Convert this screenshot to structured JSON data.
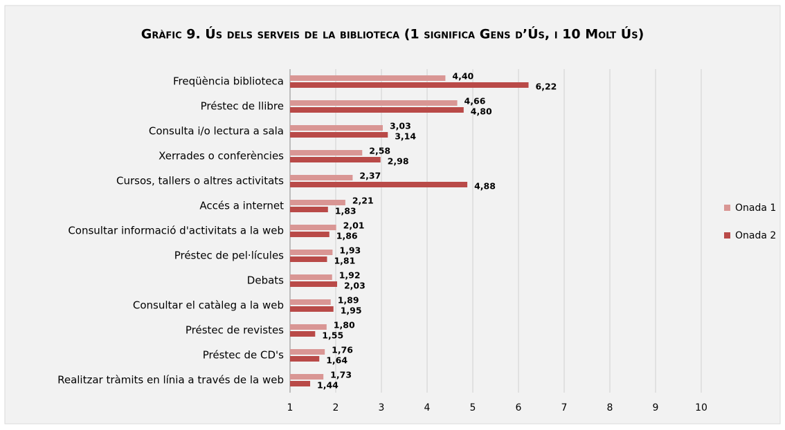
{
  "chart_data": {
    "type": "hbar",
    "title": "Gràfic 9. Ús dels serveis de la biblioteca (1 significa Gens d’Ús, i 10 Molt Ús)",
    "categories": [
      "Freqüència biblioteca",
      "Préstec de llibre",
      "Consulta i/o lectura a sala",
      "Xerrades o conferències",
      "Cursos, tallers o altres activitats",
      "Accés a internet",
      "Consultar informació d'activitats a la web",
      "Préstec de pel·lícules",
      "Debats",
      "Consultar el catàleg a la web",
      "Préstec de revistes",
      "Préstec de CD's",
      "Realitzar tràmits en línia a través de la web"
    ],
    "series": [
      {
        "name": "Onada 1",
        "color": "#d99694",
        "values": [
          4.4,
          4.66,
          3.03,
          2.58,
          2.37,
          2.21,
          2.01,
          1.93,
          1.92,
          1.89,
          1.8,
          1.76,
          1.73
        ],
        "value_labels": [
          "4,40",
          "4,66",
          "3,03",
          "2,58",
          "2,37",
          "2,21",
          "2,01",
          "1,93",
          "1,92",
          "1,89",
          "1,80",
          "1,76",
          "1,73"
        ]
      },
      {
        "name": "Onada 2",
        "color": "#b94a48",
        "values": [
          6.22,
          4.8,
          3.14,
          2.98,
          4.88,
          1.83,
          1.86,
          1.81,
          2.03,
          1.95,
          1.55,
          1.64,
          1.44
        ],
        "value_labels": [
          "6,22",
          "4,80",
          "3,14",
          "2,98",
          "4,88",
          "1,83",
          "1,86",
          "1,81",
          "2,03",
          "1,95",
          "1,55",
          "1,64",
          "1,44"
        ]
      }
    ],
    "xlim": [
      1,
      10
    ],
    "xticks": [
      1,
      2,
      3,
      4,
      5,
      6,
      7,
      8,
      9,
      10
    ],
    "grid": true,
    "legend": "right"
  }
}
